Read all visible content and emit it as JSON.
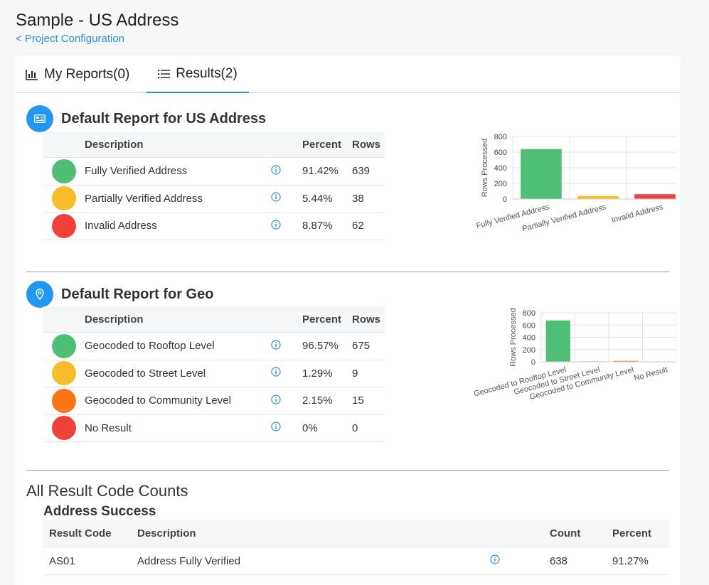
{
  "page": {
    "title": "Sample - US Address",
    "back_link": "< Project Configuration"
  },
  "tabs": [
    {
      "label": "My Reports(0)",
      "icon": "bar-chart-icon",
      "active": false
    },
    {
      "label": "Results(2)",
      "icon": "list-icon",
      "active": true
    }
  ],
  "reports": [
    {
      "title": "Default Report for US Address",
      "icon": "address-card-icon",
      "headers": {
        "description": "Description",
        "percent": "Percent",
        "rows": "Rows"
      },
      "rows": [
        {
          "description": "Fully Verified Address",
          "percent": "91.42%",
          "rows": "639",
          "color": "#4fbf76"
        },
        {
          "description": "Partially Verified Address",
          "percent": "5.44%",
          "rows": "38",
          "color": "#f6bf2a"
        },
        {
          "description": "Invalid Address",
          "percent": "8.87%",
          "rows": "62",
          "color": "#f2413a"
        }
      ]
    },
    {
      "title": "Default Report for Geo",
      "icon": "map-pin-icon",
      "headers": {
        "description": "Description",
        "percent": "Percent",
        "rows": "Rows"
      },
      "rows": [
        {
          "description": "Geocoded to Rooftop Level",
          "percent": "96.57%",
          "rows": "675",
          "color": "#4fbf76"
        },
        {
          "description": "Geocoded to Street Level",
          "percent": "1.29%",
          "rows": "9",
          "color": "#f6bf2a"
        },
        {
          "description": "Geocoded to Community Level",
          "percent": "2.15%",
          "rows": "15",
          "color": "#fb7418"
        },
        {
          "description": "No Result",
          "percent": "0%",
          "rows": "0",
          "color": "#f2413a"
        }
      ]
    }
  ],
  "chart_data": [
    {
      "type": "bar",
      "ylabel": "Rows Processed",
      "ylim": [
        0,
        800
      ],
      "yticks": [
        "0",
        "200",
        "400",
        "600",
        "800"
      ],
      "categories": [
        "Fully Verified Address",
        "Partially Verified Address",
        "Invalid Address"
      ],
      "values": [
        639,
        38,
        62
      ],
      "colors": [
        "#4fbf76",
        "#f6bf2a",
        "#f2413a"
      ]
    },
    {
      "type": "bar",
      "ylabel": "Rows Processed",
      "ylim": [
        0,
        800
      ],
      "yticks": [
        "0",
        "200",
        "400",
        "600",
        "800"
      ],
      "categories": [
        "Geocoded to Rooftop Level",
        "Geocoded to Street Level",
        "Geocoded to Community Level",
        "No Result"
      ],
      "values": [
        675,
        9,
        15,
        0
      ],
      "colors": [
        "#4fbf76",
        "#f6bf2a",
        "#fb7418",
        "#f2413a"
      ]
    }
  ],
  "all_counts": {
    "title": "All Result Code Counts",
    "group_title": "Address Success",
    "headers": {
      "code": "Result Code",
      "description": "Description",
      "count": "Count",
      "percent": "Percent"
    },
    "rows": [
      {
        "code": "AS01",
        "description": "Address Fully Verified",
        "count": "638",
        "percent": "91.27%"
      }
    ]
  }
}
